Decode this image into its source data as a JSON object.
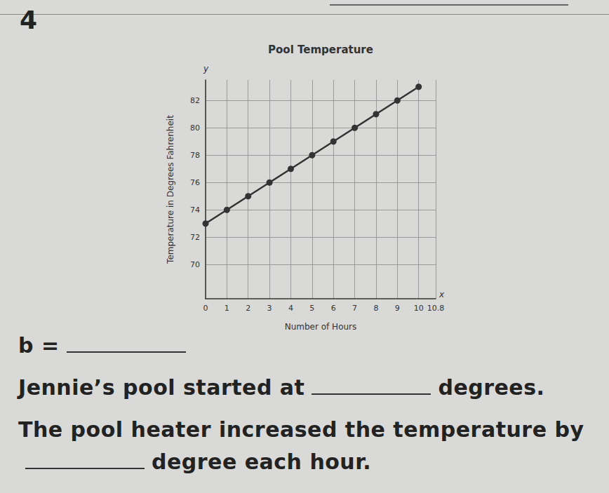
{
  "problem_number": "4",
  "chart_data": {
    "type": "line",
    "title": "Pool Temperature",
    "xlabel": "Number of Hours",
    "ylabel": "Temperature in Degrees Fahrenheit",
    "x_axis_mark": "x",
    "y_axis_mark": "y",
    "x": [
      0,
      1,
      2,
      3,
      4,
      5,
      6,
      7,
      8,
      9,
      10
    ],
    "values": [
      73,
      74,
      75,
      76,
      77,
      78,
      79,
      80,
      81,
      82,
      83
    ],
    "color": "#333333",
    "marker": "circle",
    "line_style": "solid",
    "xlim": [
      0,
      10.8
    ],
    "xticks": [
      0,
      1,
      2,
      3,
      4,
      5,
      6,
      7,
      8,
      9,
      10
    ],
    "ylim": [
      67.5,
      83.5
    ],
    "yticks": [
      70,
      72,
      74,
      76,
      78,
      80,
      82
    ],
    "grid": true
  },
  "questions": [
    [
      "b ="
    ],
    [
      "Jennie’s pool started at",
      "degrees."
    ],
    [
      "The pool heater increased the temperature by",
      "degree each hour."
    ]
  ]
}
